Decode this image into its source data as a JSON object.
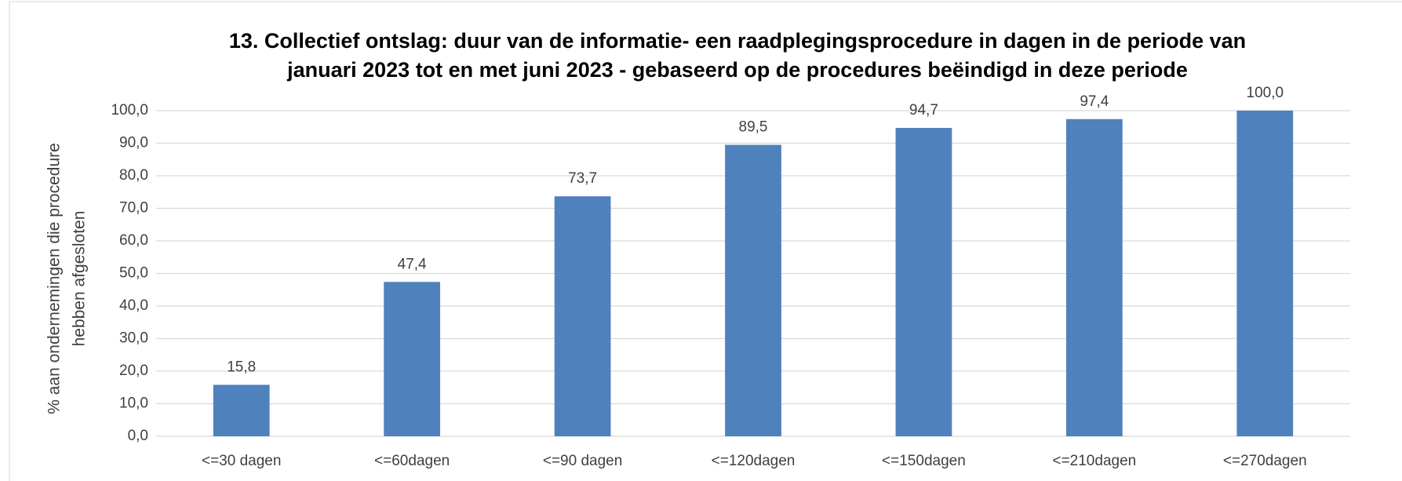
{
  "chart_data": {
    "type": "bar",
    "title": [
      "13. Collectief ontslag: duur van de informatie- een raadplegingsprocedure in dagen in de periode van",
      "januari 2023 tot en met juni 2023 - gebaseerd op de procedures beëindigd in deze periode"
    ],
    "y_label": [
      "% aan ondernemingen die procedure",
      "hebben afgesloten"
    ],
    "categories": [
      "<=30 dagen",
      "<=60dagen",
      "<=90 dagen",
      "<=120dagen",
      "<=150dagen",
      "<=210dagen",
      "<=270dagen"
    ],
    "values": [
      15.8,
      47.4,
      73.7,
      89.5,
      94.7,
      97.4,
      100.0
    ],
    "value_labels": [
      "15,8",
      "47,4",
      "73,7",
      "89,5",
      "94,7",
      "97,4",
      "100,0"
    ],
    "color": "#4f81bd",
    "ylim": [
      0,
      100
    ],
    "yticks": [
      {
        "value": 0,
        "label": "0,0"
      },
      {
        "value": 10,
        "label": "10,0"
      },
      {
        "value": 20,
        "label": "20,0"
      },
      {
        "value": 30,
        "label": "30,0"
      },
      {
        "value": 40,
        "label": "40,0"
      },
      {
        "value": 50,
        "label": "50,0"
      },
      {
        "value": 60,
        "label": "60,0"
      },
      {
        "value": 70,
        "label": "70,0"
      },
      {
        "value": 80,
        "label": "80,0"
      },
      {
        "value": 90,
        "label": "90,0"
      },
      {
        "value": 100,
        "label": "100,0"
      }
    ],
    "grid": true
  }
}
